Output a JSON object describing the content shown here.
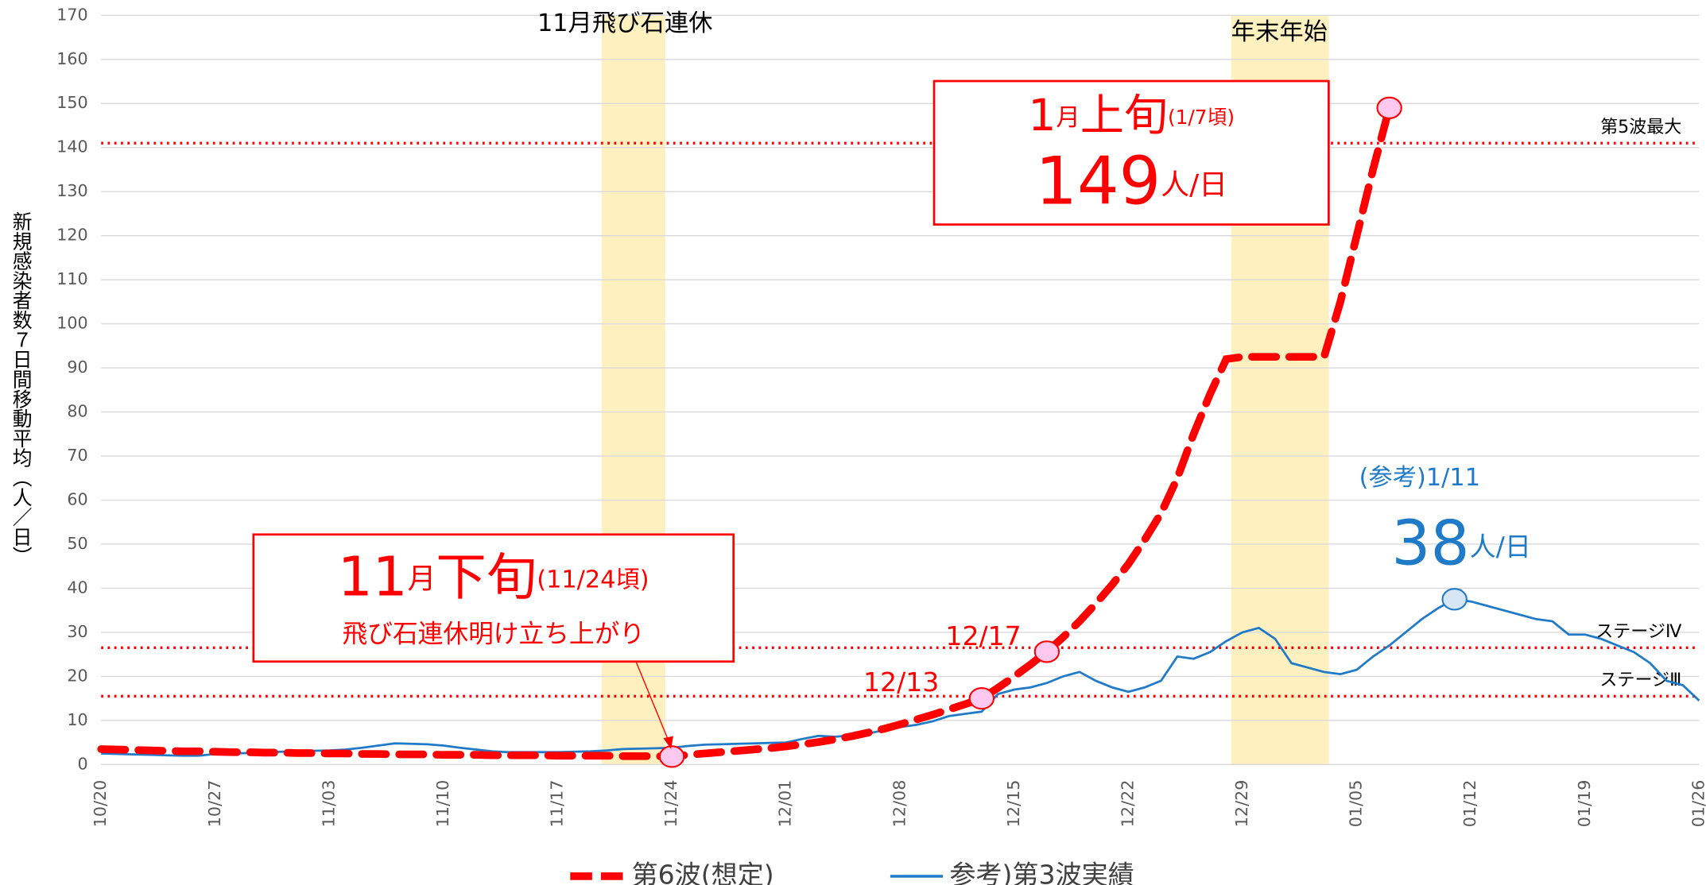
{
  "chart_data": {
    "type": "line",
    "ylabel": "新規感染者数７日間移動平均（人／日）",
    "categories": [
      "10/20",
      null,
      null,
      null,
      null,
      null,
      null,
      "10/27",
      null,
      null,
      null,
      null,
      null,
      null,
      "11/03",
      null,
      null,
      null,
      null,
      null,
      null,
      "11/10",
      null,
      null,
      null,
      null,
      null,
      null,
      "11/17",
      null,
      null,
      null,
      null,
      null,
      null,
      "11/24",
      null,
      null,
      null,
      null,
      null,
      null,
      "12/01",
      null,
      null,
      null,
      null,
      null,
      null,
      "12/08",
      null,
      null,
      null,
      null,
      null,
      null,
      "12/15",
      null,
      null,
      null,
      null,
      null,
      null,
      "12/22",
      null,
      null,
      null,
      null,
      null,
      null,
      "12/29",
      null,
      null,
      null,
      null,
      null,
      null,
      "01/05",
      null,
      null,
      null,
      null,
      null,
      null,
      "01/12",
      null,
      null,
      null,
      null,
      null,
      null,
      "01/19",
      null,
      null,
      null,
      null,
      null,
      null,
      "01/26"
    ],
    "series": [
      {
        "name": "第6波(想定)",
        "color": "#ff0000",
        "dashed": true,
        "values": [
          3.5,
          3.4,
          3.3,
          3.2,
          3.1,
          3.0,
          3.0,
          2.9,
          2.8,
          2.8,
          2.7,
          2.7,
          2.6,
          2.6,
          2.5,
          2.5,
          2.4,
          2.4,
          2.3,
          2.3,
          2.3,
          2.2,
          2.2,
          2.2,
          2.1,
          2.1,
          2.1,
          2.1,
          2.0,
          2.0,
          2.0,
          2.0,
          1.9,
          1.9,
          1.9,
          1.8,
          2.2,
          2.5,
          2.8,
          3.1,
          3.4,
          3.7,
          4.1,
          4.6,
          5.1,
          5.7,
          6.4,
          7.2,
          8.1,
          9.1,
          10.2,
          11.3,
          12.5,
          13.7,
          15,
          17.4,
          20,
          22.7,
          25.6,
          28.9,
          32.5,
          36.5,
          40.8,
          45.5,
          51,
          57,
          65,
          75,
          84,
          92,
          92.5,
          92.5,
          92.5,
          92.5,
          92.5,
          92.5,
          105,
          120,
          135,
          149,
          null,
          null,
          null,
          null,
          null,
          null,
          null,
          null,
          null,
          null,
          null,
          null,
          null,
          null,
          null,
          null,
          null,
          null,
          null
        ]
      },
      {
        "name": "参考)第3波実績",
        "color": "#1f7ac8",
        "dashed": false,
        "values": [
          2.5,
          2.4,
          2.3,
          2.2,
          2.1,
          2.0,
          2.0,
          2.4,
          2.5,
          2.6,
          2.7,
          2.9,
          3.0,
          3.1,
          3.2,
          3.4,
          3.8,
          4.3,
          4.8,
          4.7,
          4.6,
          4.3,
          3.8,
          3.4,
          3.0,
          2.8,
          2.8,
          2.8,
          2.8,
          2.9,
          3.0,
          3.2,
          3.5,
          3.6,
          3.7,
          3.8,
          4.2,
          4.5,
          4.6,
          4.7,
          4.8,
          4.9,
          5.0,
          5.8,
          6.5,
          6.3,
          6.6,
          7.0,
          7.8,
          8.5,
          9.0,
          9.8,
          11.0,
          11.5,
          12.0,
          16.0,
          17.0,
          17.5,
          18.5,
          20.0,
          21.0,
          19.0,
          17.5,
          16.5,
          17.5,
          19.0,
          24.5,
          24.0,
          25.5,
          28.0,
          30.0,
          31.0,
          28.5,
          23.0,
          22.0,
          21.0,
          20.5,
          21.5,
          24.5,
          27.0,
          30.0,
          33.0,
          35.5,
          37.5,
          37.0,
          36.0,
          35.0,
          34.0,
          33.0,
          32.5,
          29.5,
          29.5,
          28.5,
          27.0,
          25.5,
          23.0,
          19.0,
          18.0,
          14.5
        ]
      }
    ],
    "ylim": [
      0,
      170
    ],
    "yticks": [
      0,
      10,
      20,
      30,
      40,
      50,
      60,
      70,
      80,
      90,
      100,
      110,
      120,
      130,
      140,
      150,
      160,
      170
    ],
    "grid": true,
    "reference_lines": [
      {
        "label": "第5波最大",
        "value": 141
      },
      {
        "label": "ステージⅣ",
        "value": 26.5
      },
      {
        "label": "ステージⅢ",
        "value": 15.5
      }
    ],
    "periods": [
      "11月飛び石連休",
      "年末年始"
    ],
    "annotations": {
      "peak": {
        "a": "1",
        "b": "月",
        "c": "上旬",
        "d": "(1/7頃)",
        "num": "149",
        "unit": "人/日"
      },
      "start": {
        "a": "11",
        "b": "月",
        "c": "下旬",
        "d": "(11/24頃)",
        "sub": "飛び石連休明け立ち上がり"
      },
      "ref": {
        "head": "(参考)1/11",
        "num": "38",
        "unit": "人/日"
      },
      "d1213": "12/13",
      "d1217": "12/17"
    }
  }
}
